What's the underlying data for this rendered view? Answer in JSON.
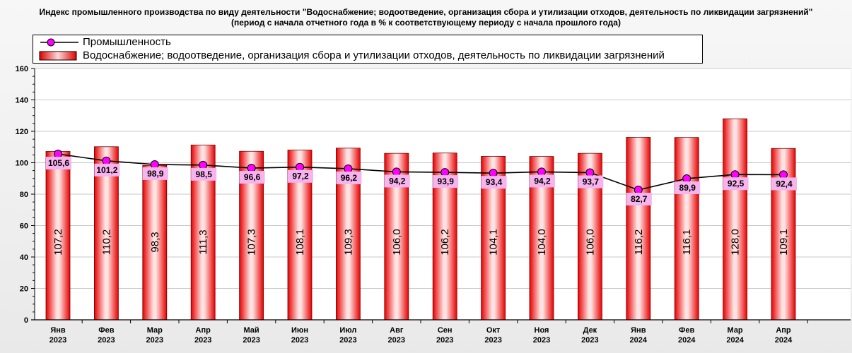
{
  "title": "Индекс промышленного производства по виду деятельности \"Водоснабжение; водоотведение, организация сбора и утилизации отходов, деятельность по ликвидации загрязнений\"",
  "subtitle": "(период с начала отчетного года в % к соответствующему периоду с начала прошлого года)",
  "legend": {
    "line_label": "Промышленность",
    "bar_label": "Водоснабжение; водоотведение, организация сбора и утилизации отходов, деятельность по ликвидации загрязнений"
  },
  "colors": {
    "bar": "#ff0000",
    "line": "#000000",
    "marker": "#ff00ff",
    "label_box": "#f7b3ee"
  },
  "chart_data": {
    "type": "bar",
    "categories": [
      [
        "Янв",
        "2023"
      ],
      [
        "Фев",
        "2023"
      ],
      [
        "Мар",
        "2023"
      ],
      [
        "Апр",
        "2023"
      ],
      [
        "Май",
        "2023"
      ],
      [
        "Июн",
        "2023"
      ],
      [
        "Июл",
        "2023"
      ],
      [
        "Авг",
        "2023"
      ],
      [
        "Сен",
        "2023"
      ],
      [
        "Окт",
        "2023"
      ],
      [
        "Ноя",
        "2023"
      ],
      [
        "Дек",
        "2023"
      ],
      [
        "Янв",
        "2024"
      ],
      [
        "Фев",
        "2024"
      ],
      [
        "Мар",
        "2024"
      ],
      [
        "Апр",
        "2024"
      ]
    ],
    "ylim": [
      0,
      160
    ],
    "yticks": [
      0,
      20,
      40,
      60,
      80,
      100,
      120,
      140,
      160
    ],
    "grid": true,
    "legend_position": "top-left",
    "series": [
      {
        "name": "Водоснабжение; водоотведение, организация сбора и утилизации отходов, деятельность по ликвидации загрязнений",
        "type": "bar",
        "values": [
          107.2,
          110.2,
          98.3,
          111.3,
          107.3,
          108.1,
          109.3,
          106.0,
          106.2,
          104.1,
          104.0,
          106.0,
          116.2,
          116.1,
          128.0,
          109.1
        ],
        "labels": [
          "107,2",
          "110,2",
          "98,3",
          "111,3",
          "107,3",
          "108,1",
          "109,3",
          "106,0",
          "106,2",
          "104,1",
          "104,0",
          "106,0",
          "116,2",
          "116,1",
          "128,0",
          "109,1"
        ]
      },
      {
        "name": "Промышленность",
        "type": "line",
        "values": [
          105.6,
          101.2,
          98.9,
          98.5,
          96.6,
          97.2,
          96.2,
          94.2,
          93.9,
          93.4,
          94.2,
          93.7,
          82.7,
          89.9,
          92.5,
          92.4
        ],
        "labels": [
          "105,6",
          "101,2",
          "98,9",
          "98,5",
          "96,6",
          "97,2",
          "96,2",
          "94,2",
          "93,9",
          "93,4",
          "94,2",
          "93,7",
          "82,7",
          "89,9",
          "92,5",
          "92,4"
        ]
      }
    ]
  }
}
